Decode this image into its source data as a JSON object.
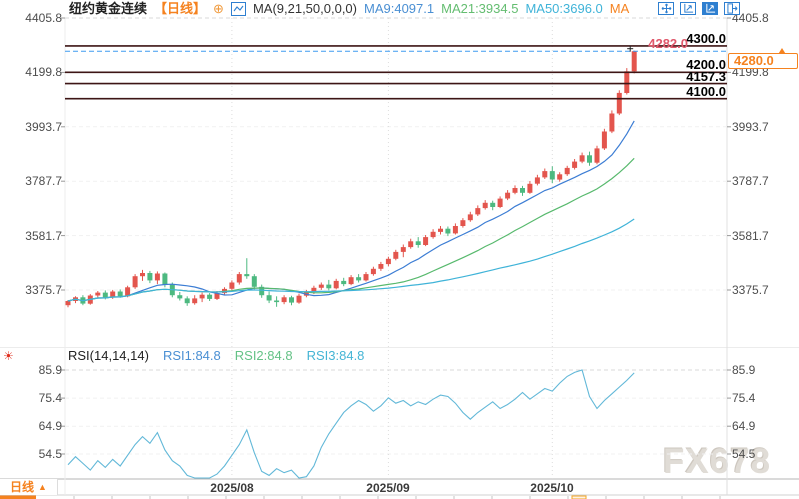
{
  "header": {
    "title": "纽约黄金连续",
    "period_tag": "【日线】",
    "add_icon": "⊕",
    "ma_settings_label": "MA(9,21,50,0,0,0)",
    "ma9_label": "MA9:4097.1",
    "ma21_label": "MA21:3934.5",
    "ma50_label": "MA50:3696.0",
    "ma_overflow_label": "MA"
  },
  "colors": {
    "up": "#e3554d",
    "down": "#4db980",
    "ma9": "#3c7dd4",
    "ma21": "#57b96d",
    "ma50": "#3fb3d8",
    "rsi_line": "#62b8d8",
    "accent_orange": "#f5821f",
    "price_line": "#3d1515",
    "current_price_line": "#3e9bf0",
    "high_label_color": "#e0586b"
  },
  "main_chart": {
    "y_axis_labels": [
      "4405.8",
      "4199.8",
      "3993.7",
      "3787.7",
      "3581.7",
      "3375.7"
    ],
    "y_axis_values": [
      4405.8,
      4199.8,
      3993.7,
      3787.7,
      3581.7,
      3375.7
    ],
    "price_lines": [
      {
        "label": "4300.0",
        "value": 4300.0
      },
      {
        "label": "4200.0",
        "value": 4200.0
      },
      {
        "label": "4157.3",
        "value": 4157.3
      },
      {
        "label": "4100.0",
        "value": 4100.0
      }
    ],
    "current_price_label": "4280.0",
    "current_price": 4280.0,
    "high_label": "4282.0",
    "high_value": 4282.0
  },
  "rsi_pane": {
    "label": "RSI(14,14,14)",
    "rsi1_label": "RSI1:84.8",
    "rsi2_label": "RSI2:84.8",
    "rsi3_label": "RSI3:84.8",
    "y_axis_labels": [
      "85.9",
      "75.4",
      "64.9",
      "54.5"
    ],
    "y_axis_values": [
      85.9,
      75.4,
      64.9,
      54.5
    ]
  },
  "bottom_bar": {
    "period_label": "日线",
    "arrow": "▲"
  },
  "watermark": "FX678",
  "chart_data": [
    {
      "type": "candlestick",
      "title": "纽约黄金连续 日线",
      "price_axis_ticks": [
        4405.8,
        4199.8,
        3993.7,
        3787.7,
        3581.7,
        3375.7
      ],
      "month_ticks": [
        {
          "label": "2025/08",
          "candle_index": 22
        },
        {
          "label": "2025/09",
          "candle_index": 43
        },
        {
          "label": "2025/10",
          "candle_index": 65
        }
      ],
      "moving_averages": {
        "windows": [
          9,
          21,
          50
        ],
        "ma9_current": 4097.1,
        "ma21_current": 3934.5,
        "ma50_current": 3696.0
      },
      "horizontal_lines": [
        4300.0,
        4200.0,
        4157.3,
        4100.0
      ],
      "current_price": 4280.0,
      "session_high": 4282.0,
      "candles_ohlc": [
        [
          3318,
          3338,
          3310,
          3334
        ],
        [
          3334,
          3352,
          3326,
          3348
        ],
        [
          3348,
          3356,
          3318,
          3324
        ],
        [
          3324,
          3360,
          3320,
          3355
        ],
        [
          3355,
          3372,
          3344,
          3366
        ],
        [
          3366,
          3374,
          3340,
          3348
        ],
        [
          3348,
          3376,
          3342,
          3370
        ],
        [
          3370,
          3378,
          3346,
          3352
        ],
        [
          3352,
          3392,
          3348,
          3386
        ],
        [
          3386,
          3436,
          3380,
          3428
        ],
        [
          3428,
          3452,
          3410,
          3440
        ],
        [
          3440,
          3448,
          3402,
          3412
        ],
        [
          3412,
          3446,
          3398,
          3438
        ],
        [
          3438,
          3442,
          3386,
          3396
        ],
        [
          3396,
          3404,
          3348,
          3356
        ],
        [
          3356,
          3368,
          3336,
          3344
        ],
        [
          3344,
          3352,
          3316,
          3326
        ],
        [
          3326,
          3356,
          3320,
          3344
        ],
        [
          3344,
          3366,
          3330,
          3358
        ],
        [
          3358,
          3364,
          3334,
          3342
        ],
        [
          3342,
          3372,
          3338,
          3364
        ],
        [
          3364,
          3386,
          3356,
          3380
        ],
        [
          3380,
          3412,
          3374,
          3404
        ],
        [
          3404,
          3444,
          3396,
          3436
        ],
        [
          3436,
          3496,
          3418,
          3428
        ],
        [
          3428,
          3436,
          3378,
          3388
        ],
        [
          3388,
          3396,
          3346,
          3356
        ],
        [
          3356,
          3370,
          3326,
          3336
        ],
        [
          3336,
          3352,
          3312,
          3330
        ],
        [
          3330,
          3356,
          3322,
          3348
        ],
        [
          3348,
          3354,
          3318,
          3328
        ],
        [
          3328,
          3362,
          3324,
          3354
        ],
        [
          3354,
          3376,
          3348,
          3368
        ],
        [
          3368,
          3392,
          3360,
          3384
        ],
        [
          3384,
          3404,
          3376,
          3396
        ],
        [
          3396,
          3414,
          3374,
          3382
        ],
        [
          3382,
          3418,
          3378,
          3410
        ],
        [
          3410,
          3422,
          3390,
          3398
        ],
        [
          3398,
          3432,
          3394,
          3424
        ],
        [
          3424,
          3436,
          3404,
          3412
        ],
        [
          3412,
          3444,
          3408,
          3436
        ],
        [
          3436,
          3464,
          3430,
          3456
        ],
        [
          3456,
          3482,
          3448,
          3474
        ],
        [
          3474,
          3502,
          3466,
          3494
        ],
        [
          3494,
          3528,
          3488,
          3520
        ],
        [
          3520,
          3548,
          3500,
          3538
        ],
        [
          3538,
          3570,
          3532,
          3560
        ],
        [
          3560,
          3576,
          3536,
          3546
        ],
        [
          3546,
          3584,
          3542,
          3576
        ],
        [
          3576,
          3606,
          3570,
          3596
        ],
        [
          3596,
          3618,
          3586,
          3608
        ],
        [
          3608,
          3616,
          3580,
          3590
        ],
        [
          3590,
          3628,
          3586,
          3618
        ],
        [
          3618,
          3648,
          3612,
          3640
        ],
        [
          3640,
          3672,
          3634,
          3662
        ],
        [
          3662,
          3696,
          3656,
          3686
        ],
        [
          3686,
          3716,
          3680,
          3706
        ],
        [
          3706,
          3714,
          3678,
          3690
        ],
        [
          3690,
          3730,
          3686,
          3722
        ],
        [
          3722,
          3754,
          3716,
          3744
        ],
        [
          3744,
          3772,
          3738,
          3762
        ],
        [
          3762,
          3770,
          3732,
          3744
        ],
        [
          3744,
          3788,
          3740,
          3778
        ],
        [
          3778,
          3812,
          3772,
          3802
        ],
        [
          3802,
          3836,
          3796,
          3826
        ],
        [
          3826,
          3844,
          3780,
          3794
        ],
        [
          3794,
          3822,
          3786,
          3814
        ],
        [
          3814,
          3846,
          3808,
          3838
        ],
        [
          3838,
          3872,
          3832,
          3862
        ],
        [
          3862,
          3896,
          3856,
          3886
        ],
        [
          3886,
          3900,
          3846,
          3858
        ],
        [
          3858,
          3922,
          3852,
          3912
        ],
        [
          3912,
          3986,
          3906,
          3976
        ],
        [
          3976,
          4056,
          3970,
          4044
        ],
        [
          4044,
          4132,
          4038,
          4122
        ],
        [
          4122,
          4216,
          4116,
          4204
        ],
        [
          4204,
          4282,
          4196,
          4280
        ]
      ]
    },
    {
      "type": "line",
      "title": "RSI(14,14,14)",
      "ylim": [
        54.5,
        85.9
      ],
      "current_values": {
        "rsi1": 84.8,
        "rsi2": 84.8,
        "rsi3": 84.8
      },
      "values": [
        50.5,
        53.5,
        51,
        48.5,
        52,
        49.5,
        52.5,
        50,
        54,
        58,
        61,
        58.5,
        62.5,
        56,
        52,
        50,
        46.5,
        44,
        43.5,
        45.5,
        47,
        50,
        54,
        58,
        63.5,
        55,
        48,
        46.5,
        49,
        47.5,
        48.5,
        44,
        46,
        50,
        57,
        62,
        66,
        70,
        72.5,
        74.5,
        73,
        70.5,
        72.5,
        75.5,
        73.5,
        74.5,
        72.5,
        74,
        73,
        75,
        76.5,
        76,
        73.5,
        70,
        67.5,
        70,
        72,
        74,
        71.5,
        73,
        75,
        77.5,
        75,
        77,
        79,
        78,
        81,
        83.5,
        85,
        85.9,
        76,
        71.5,
        74.5,
        77,
        79.5,
        82,
        84.8
      ]
    }
  ]
}
